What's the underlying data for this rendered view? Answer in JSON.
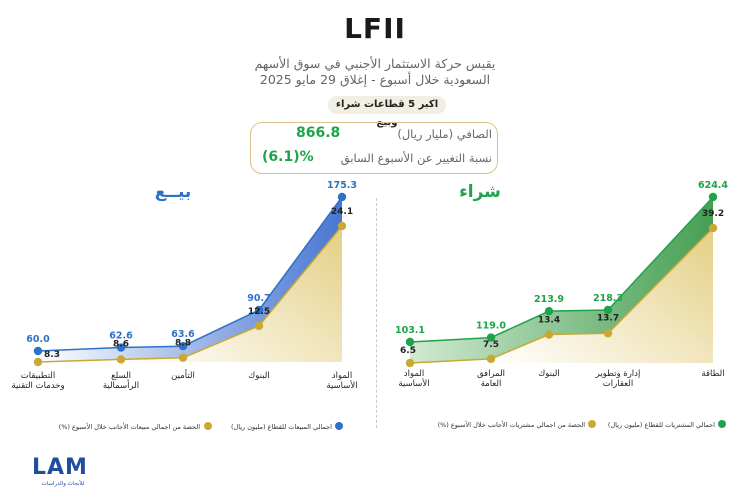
{
  "header": {
    "title": "LFII",
    "subtitle_line1": "يقيس حركة الاستثمار الأجنبي في سوق الأسهم",
    "subtitle_line2": "السعودية خلال أسبوع - إغلاق  29 مايو 2025",
    "pill": "اكبر 5 قطاعات شراء وبيع"
  },
  "net_box": {
    "net_label": "الصافي (مليار ريال)",
    "net_value": "866.8",
    "change_label": "نسبة التغيير عن الأسبوع السابق",
    "change_value": "(6.1)%"
  },
  "colors": {
    "buy": "#1fa34a",
    "sell": "#2d72c6",
    "share": "#c9a933"
  },
  "chart_data": [
    {
      "type": "area",
      "title": "بيــع",
      "categories": [
        "التطبيقات\nوخدمات التقنية",
        "السلع\nالرأسمالية",
        "التأمين",
        "البنوك",
        "المواد\nالأساسية"
      ],
      "series": [
        {
          "name": "اجمالي المبيعات للقطاع (مليون ريال)",
          "values": [
            60.0,
            62.6,
            63.6,
            90.7,
            175.3
          ],
          "labels": [
            "60.0",
            "62.6",
            "63.6",
            "90.7",
            "175.3"
          ]
        },
        {
          "name": "الحصة من اجمالي مبيعات الأجانب خلال الأسبوع (%)",
          "values": [
            8.3,
            8.6,
            8.8,
            12.5,
            24.1
          ],
          "labels": [
            "8.3",
            "8.6",
            "8.8",
            "12.5",
            "24.1"
          ]
        }
      ]
    },
    {
      "type": "area",
      "title": "شراء",
      "categories": [
        "المواد\nالأساسية",
        "المرافق\nالعامة",
        "البنوك",
        "إدارة وتطوير\nالعقارات",
        "الطاقة"
      ],
      "series": [
        {
          "name": "اجمالي المشتريات للقطاع (مليون ريال)",
          "values": [
            103.1,
            119.0,
            213.9,
            218.3,
            624.4
          ],
          "labels": [
            "103.1",
            "119.0",
            "213.9",
            "218.3",
            "624.4"
          ]
        },
        {
          "name": "الحصة من اجمالي مشتريات الأجانب خلال الأسبوع (%)",
          "values": [
            6.5,
            7.5,
            13.4,
            13.7,
            39.2
          ],
          "labels": [
            "6.5",
            "7.5",
            "13.4",
            "13.7",
            "39.2"
          ]
        }
      ]
    }
  ],
  "logo": {
    "text": "LAM",
    "sub": "للأبحاث والدراسات"
  }
}
